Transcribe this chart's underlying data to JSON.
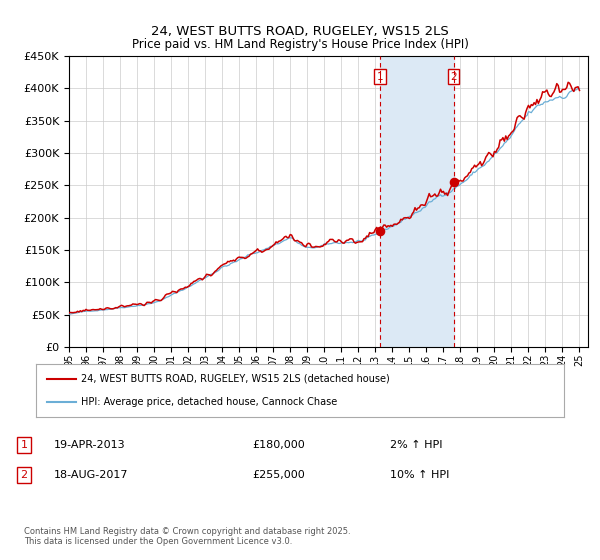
{
  "title": "24, WEST BUTTS ROAD, RUGELEY, WS15 2LS",
  "subtitle": "Price paid vs. HM Land Registry's House Price Index (HPI)",
  "legend_line1": "24, WEST BUTTS ROAD, RUGELEY, WS15 2LS (detached house)",
  "legend_line2": "HPI: Average price, detached house, Cannock Chase",
  "transaction1_date": "19-APR-2013",
  "transaction1_price": 180000,
  "transaction1_label": "2% ↑ HPI",
  "transaction2_date": "18-AUG-2017",
  "transaction2_price": 255000,
  "transaction2_label": "10% ↑ HPI",
  "footnote": "Contains HM Land Registry data © Crown copyright and database right 2025.\nThis data is licensed under the Open Government Licence v3.0.",
  "hpi_color": "#6baed6",
  "price_color": "#cc0000",
  "dot_color": "#cc0000",
  "vline_color": "#cc0000",
  "shade_color": "#dce9f5",
  "background_color": "#ffffff",
  "ylim": [
    0,
    450000
  ],
  "ytick_step": 50000,
  "start_year": 1995,
  "end_year": 2025,
  "transaction1_year": 2013.3,
  "transaction2_year": 2017.6
}
